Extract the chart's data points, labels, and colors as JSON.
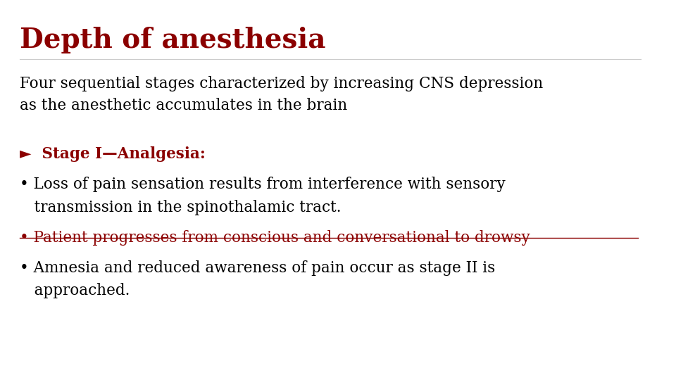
{
  "background_color": "#ffffff",
  "title": "Depth of anesthesia",
  "title_color": "#8B0000",
  "title_fontsize": 28,
  "body_color": "#000000",
  "red_color": "#8B0000",
  "body_fontsize": 15.5,
  "intro_text": "Four sequential stages characterized by increasing CNS depression\nas the anesthetic accumulates in the brain",
  "stage_header": "►  Stage I—Analgesia:",
  "bullet1_line1": "• Loss of pain sensation results from interference with sensory",
  "bullet1_line2": "   transmission in the spinothalamic tract.",
  "bullet2": "• Patient progresses from conscious and conversational to drowsy",
  "bullet3_line1": "• Amnesia and reduced awareness of pain occur as stage II is",
  "bullet3_line2": "   approached."
}
